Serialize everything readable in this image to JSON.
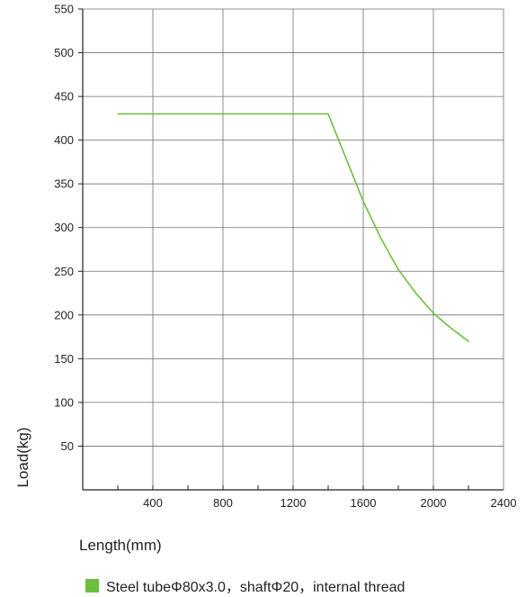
{
  "chart_data": {
    "type": "line",
    "xlabel": "Length(mm)",
    "ylabel": "Load(kg)",
    "xlim": [
      0,
      2400
    ],
    "ylim": [
      0,
      550
    ],
    "x_ticks": [
      400,
      800,
      1200,
      1600,
      2000,
      2400
    ],
    "y_ticks": [
      50,
      100,
      150,
      200,
      250,
      300,
      350,
      400,
      450,
      500,
      550
    ],
    "grid": true,
    "legend_position": "bottom",
    "series": [
      {
        "name": "Steel tubeΦ80x3.0，shaftΦ20，internal thread",
        "color": "#6cbf3e",
        "x": [
          200,
          1400,
          1450,
          1500,
          1600,
          1700,
          1800,
          1900,
          2000,
          2100,
          2200
        ],
        "y": [
          430,
          430,
          405,
          380,
          330,
          288,
          252,
          225,
          202,
          185,
          170
        ]
      }
    ]
  }
}
